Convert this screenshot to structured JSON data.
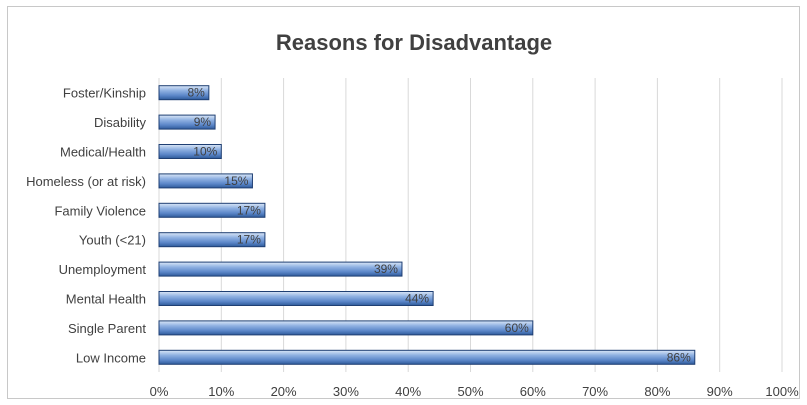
{
  "chart_data": {
    "type": "bar",
    "orientation": "horizontal",
    "title": "Reasons for Disadvantage",
    "xlabel": "",
    "ylabel": "",
    "categories": [
      "Foster/Kinship",
      "Disability",
      "Medical/Health",
      "Homeless (or at risk)",
      "Family Violence",
      "Youth (<21)",
      "Unemployment",
      "Mental Health",
      "Single Parent",
      "Low Income"
    ],
    "values": [
      8,
      9,
      10,
      15,
      17,
      17,
      39,
      44,
      60,
      86
    ],
    "data_labels": [
      "8%",
      "9%",
      "10%",
      "15%",
      "17%",
      "17%",
      "39%",
      "44%",
      "60%",
      "86%"
    ],
    "xlim": [
      0,
      100
    ],
    "x_ticks": [
      0,
      10,
      20,
      30,
      40,
      50,
      60,
      70,
      80,
      90,
      100
    ],
    "x_tick_labels": [
      "0%",
      "10%",
      "20%",
      "30%",
      "40%",
      "50%",
      "60%",
      "70%",
      "80%",
      "90%",
      "100%"
    ],
    "grid": "vertical",
    "legend": "none",
    "colors": {
      "bar_light": "#a9c4ea",
      "bar_mid": "#6f98d6",
      "bar_dark": "#2e5a9a",
      "bar_edge": "#1f3f73",
      "grid": "#d9d9d9",
      "text": "#404040"
    }
  }
}
